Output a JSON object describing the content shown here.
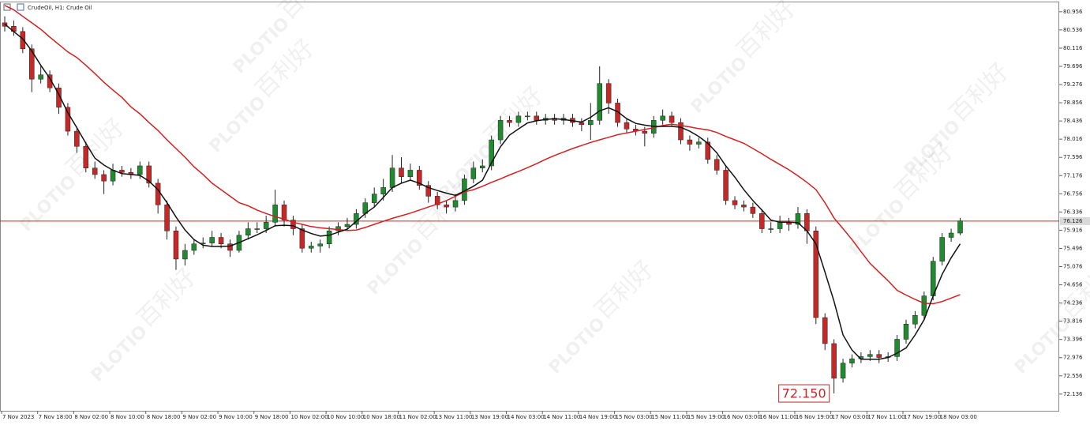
{
  "chart_data": {
    "type": "candlestick",
    "title": "CrudeOil, H1: Crude Oil",
    "watermark": [
      "PLOTIO",
      "百利好"
    ],
    "categories": [
      "7 Nov 2023",
      null,
      null,
      null,
      "7 Nov 18:00",
      null,
      null,
      null,
      "8 Nov 02:00",
      null,
      null,
      null,
      "8 Nov 10:00",
      null,
      null,
      null,
      "8 Nov 18:00",
      null,
      null,
      null,
      "9 Nov 02:00",
      null,
      null,
      null,
      "9 Nov 10:00",
      null,
      null,
      null,
      "9 Nov 18:00",
      null,
      null,
      null,
      "10 Nov 02:00",
      null,
      null,
      null,
      "10 Nov 10:00",
      null,
      null,
      null,
      "10 Nov 18:00",
      null,
      null,
      null,
      "11 Nov 02:00",
      null,
      null,
      null,
      "13 Nov 11:00",
      null,
      null,
      null,
      "13 Nov 19:00",
      null,
      null,
      null,
      "14 Nov 03:00",
      null,
      null,
      null,
      "14 Nov 11:00",
      null,
      null,
      null,
      "14 Nov 19:00",
      null,
      null,
      null,
      "15 Nov 03:00",
      null,
      null,
      null,
      "15 Nov 11:00",
      null,
      null,
      null,
      "15 Nov 19:00",
      null,
      null,
      null,
      "16 Nov 03:00",
      null,
      null,
      null,
      "16 Nov 11:00",
      null,
      null,
      null,
      "16 Nov 19:00",
      null,
      null,
      null,
      "17 Nov 03:00",
      null,
      null,
      null,
      "17 Nov 11:00",
      null,
      null,
      null,
      "17 Nov 19:00",
      null,
      null,
      null,
      "18 Nov 03:00",
      null,
      null
    ],
    "open": [
      80.7,
      80.62,
      80.5,
      80.1,
      79.4,
      79.5,
      79.2,
      78.75,
      78.2,
      77.85,
      77.35,
      77.2,
      77.05,
      77.3,
      77.25,
      77.2,
      77.4,
      77.0,
      76.5,
      75.9,
      75.25,
      75.45,
      75.6,
      75.62,
      75.75,
      75.6,
      75.45,
      75.8,
      75.95,
      75.95,
      76.1,
      76.5,
      76.15,
      75.95,
      75.5,
      75.55,
      75.6,
      75.9,
      76.0,
      76.05,
      76.3,
      76.55,
      76.75,
      76.9,
      77.35,
      77.15,
      77.3,
      76.95,
      76.7,
      76.5,
      76.45,
      76.6,
      77.1,
      77.35,
      77.4,
      78.0,
      78.45,
      78.4,
      78.55,
      78.55,
      78.45,
      78.5,
      78.45,
      78.5,
      78.4,
      78.35,
      78.45,
      79.3,
      78.85,
      78.4,
      78.25,
      78.2,
      78.15,
      78.45,
      78.55,
      78.4,
      78.0,
      77.9,
      77.95,
      77.55,
      77.3,
      76.6,
      76.5,
      76.45,
      76.3,
      75.95,
      75.95,
      76.1,
      76.05,
      76.3,
      75.9,
      73.9,
      73.3,
      72.5,
      72.85,
      72.95,
      73.0,
      73.05,
      72.98,
      73.0,
      73.4,
      73.75,
      73.95,
      74.4,
      75.2,
      75.75,
      75.85
    ],
    "high": [
      80.85,
      80.75,
      80.6,
      80.2,
      79.7,
      79.6,
      79.3,
      78.85,
      78.3,
      77.95,
      77.5,
      77.3,
      77.45,
      77.4,
      77.35,
      77.5,
      77.5,
      77.1,
      76.6,
      76.0,
      75.6,
      75.7,
      75.75,
      75.9,
      75.85,
      75.7,
      75.9,
      76.1,
      76.1,
      76.25,
      76.85,
      76.6,
      76.25,
      76.05,
      75.65,
      75.7,
      76.0,
      76.1,
      76.2,
      76.4,
      76.65,
      76.9,
      77.1,
      77.65,
      77.6,
      77.45,
      77.4,
      77.05,
      76.8,
      76.6,
      76.75,
      77.2,
      77.5,
      77.55,
      78.1,
      78.55,
      78.55,
      78.65,
      78.65,
      78.65,
      78.6,
      78.6,
      78.6,
      78.6,
      78.5,
      78.85,
      79.7,
      79.4,
      78.95,
      78.5,
      78.35,
      78.3,
      78.55,
      78.7,
      78.65,
      78.5,
      78.1,
      78.05,
      78.05,
      77.65,
      77.4,
      76.7,
      76.6,
      76.55,
      76.4,
      76.1,
      76.25,
      76.2,
      76.45,
      76.4,
      76.0,
      74.0,
      73.4,
      72.95,
      73.05,
      73.1,
      73.15,
      73.15,
      73.1,
      73.5,
      73.85,
      74.05,
      74.5,
      75.3,
      75.85,
      75.95,
      76.2
    ],
    "low": [
      80.5,
      80.4,
      80.0,
      79.1,
      79.3,
      79.1,
      78.6,
      78.1,
      77.7,
      77.25,
      77.1,
      76.75,
      76.95,
      77.15,
      77.1,
      77.1,
      76.9,
      76.3,
      75.7,
      75.0,
      75.1,
      75.35,
      75.5,
      75.55,
      75.5,
      75.3,
      75.4,
      75.7,
      75.85,
      75.85,
      76.0,
      76.0,
      75.8,
      75.4,
      75.4,
      75.4,
      75.5,
      75.8,
      75.9,
      75.95,
      76.2,
      76.45,
      76.6,
      76.8,
      77.0,
      77.05,
      76.85,
      76.55,
      76.4,
      76.3,
      76.35,
      76.5,
      77.0,
      77.25,
      77.3,
      77.9,
      78.3,
      78.3,
      78.45,
      78.35,
      78.35,
      78.35,
      78.35,
      78.3,
      78.2,
      78.0,
      78.35,
      78.6,
      78.3,
      78.15,
      78.1,
      77.85,
      78.05,
      78.35,
      78.3,
      77.9,
      77.75,
      77.8,
      77.45,
      77.2,
      76.5,
      76.4,
      76.35,
      76.2,
      75.85,
      75.85,
      75.85,
      75.9,
      75.95,
      75.6,
      73.75,
      73.15,
      72.15,
      72.4,
      72.75,
      72.85,
      72.9,
      72.85,
      72.88,
      72.9,
      73.3,
      73.65,
      73.85,
      74.3,
      75.1,
      75.65,
      75.8
    ],
    "close": [
      80.62,
      80.5,
      80.1,
      79.4,
      79.5,
      79.2,
      78.75,
      78.2,
      77.85,
      77.35,
      77.2,
      77.05,
      77.3,
      77.25,
      77.2,
      77.4,
      77.0,
      76.5,
      75.9,
      75.25,
      75.45,
      75.6,
      75.62,
      75.75,
      75.6,
      75.45,
      75.8,
      75.95,
      75.95,
      76.1,
      76.5,
      76.15,
      75.95,
      75.5,
      75.55,
      75.6,
      75.9,
      76.0,
      76.05,
      76.3,
      76.55,
      76.75,
      76.9,
      77.35,
      77.15,
      77.3,
      76.95,
      76.7,
      76.5,
      76.45,
      76.6,
      77.1,
      77.35,
      77.4,
      78.0,
      78.45,
      78.4,
      78.55,
      78.55,
      78.45,
      78.5,
      78.45,
      78.5,
      78.4,
      78.35,
      78.45,
      79.3,
      78.85,
      78.4,
      78.25,
      78.2,
      78.15,
      78.45,
      78.55,
      78.4,
      78.0,
      77.9,
      77.95,
      77.55,
      77.3,
      76.6,
      76.5,
      76.45,
      76.3,
      75.95,
      75.95,
      76.1,
      76.05,
      76.3,
      75.9,
      73.9,
      73.3,
      72.5,
      72.85,
      72.95,
      73.0,
      73.05,
      72.98,
      73.0,
      73.4,
      73.75,
      73.95,
      74.4,
      75.2,
      75.75,
      75.85,
      76.13
    ],
    "up_color": "#1f8a2e",
    "down_color": "#c62828",
    "series": [
      {
        "color": "#d42020",
        "values": [
          81.1,
          81.0,
          80.85,
          80.7,
          80.55,
          80.37,
          80.2,
          80.03,
          79.9,
          79.72,
          79.53,
          79.33,
          79.15,
          78.98,
          78.76,
          78.6,
          78.4,
          78.22,
          78.0,
          77.8,
          77.6,
          77.38,
          77.2,
          77.0,
          76.85,
          76.7,
          76.55,
          76.48,
          76.38,
          76.3,
          76.23,
          76.17,
          76.1,
          76.05,
          76.0,
          75.97,
          75.95,
          75.93,
          75.91,
          75.92,
          75.98,
          76.05,
          76.12,
          76.19,
          76.25,
          76.31,
          76.38,
          76.45,
          76.52,
          76.6,
          76.7,
          76.8,
          76.85,
          76.93,
          77.02,
          77.1,
          77.19,
          77.27,
          77.36,
          77.45,
          77.55,
          77.64,
          77.72,
          77.8,
          77.87,
          77.94,
          78.0,
          78.06,
          78.12,
          78.16,
          78.2,
          78.24,
          78.28,
          78.33,
          78.36,
          78.33,
          78.3,
          78.26,
          78.23,
          78.17,
          78.08,
          78.0,
          77.92,
          77.8,
          77.68,
          77.55,
          77.43,
          77.31,
          77.17,
          77.02,
          76.85,
          76.55,
          76.2,
          75.95,
          75.7,
          75.42,
          75.15,
          74.95,
          74.75,
          74.53,
          74.42,
          74.32,
          74.23,
          74.22,
          74.27,
          74.35,
          74.43
        ]
      },
      {
        "color": "#111111",
        "values": [
          80.67,
          80.5,
          80.33,
          80.05,
          79.72,
          79.42,
          79.05,
          78.63,
          78.28,
          77.92,
          77.58,
          77.42,
          77.3,
          77.22,
          77.2,
          77.18,
          77.05,
          76.85,
          76.55,
          76.22,
          75.92,
          75.7,
          75.57,
          75.54,
          75.54,
          75.55,
          75.63,
          75.72,
          75.81,
          75.91,
          76.02,
          76.03,
          76.02,
          75.92,
          75.84,
          75.78,
          75.8,
          75.87,
          75.94,
          76.12,
          76.3,
          76.45,
          76.67,
          76.9,
          77.0,
          77.07,
          77.0,
          76.9,
          76.83,
          76.77,
          76.72,
          76.82,
          76.93,
          77.07,
          77.47,
          77.84,
          78.11,
          78.25,
          78.39,
          78.44,
          78.47,
          78.49,
          78.47,
          78.44,
          78.41,
          78.52,
          78.67,
          78.74,
          78.65,
          78.49,
          78.38,
          78.34,
          78.31,
          78.31,
          78.31,
          78.29,
          78.2,
          78.08,
          77.92,
          77.7,
          77.4,
          77.14,
          76.85,
          76.6,
          76.38,
          76.15,
          76.1,
          76.1,
          76.09,
          75.9,
          75.6,
          74.95,
          74.28,
          73.5,
          73.15,
          72.94,
          72.94,
          72.94,
          72.98,
          73.08,
          73.2,
          73.5,
          73.85,
          74.4,
          74.9,
          75.28,
          75.6
        ]
      }
    ],
    "price_line": {
      "value": 76.126,
      "color": "#c62828"
    },
    "annotation": {
      "value": 72.15,
      "label": "72.150",
      "index": 92
    },
    "ylim": [
      71.75,
      81.19
    ],
    "yticks": [
      80.956,
      80.536,
      80.116,
      79.696,
      79.276,
      78.856,
      78.436,
      78.016,
      77.596,
      77.176,
      76.756,
      76.336,
      75.916,
      75.496,
      75.076,
      74.656,
      74.236,
      73.816,
      73.396,
      72.976,
      72.556,
      72.136
    ]
  }
}
